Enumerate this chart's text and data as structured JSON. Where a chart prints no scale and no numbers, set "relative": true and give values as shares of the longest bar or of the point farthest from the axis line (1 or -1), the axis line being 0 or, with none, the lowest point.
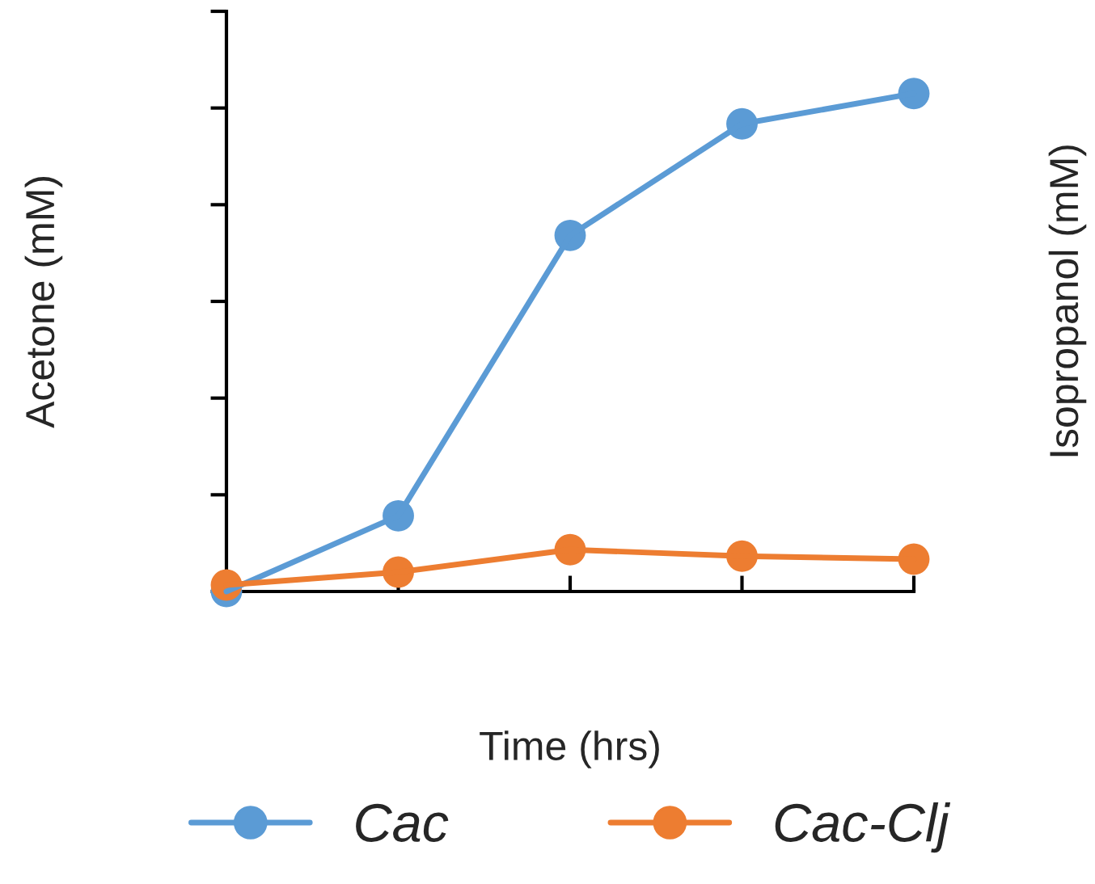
{
  "chart_data": {
    "type": "line",
    "relative": true,
    "xlabel": "Time (hrs)",
    "ylabel": "Acetone (mM)",
    "y2label": "Isopropanol (mM)",
    "categories": [
      null,
      null,
      null,
      null,
      null
    ],
    "series": [
      {
        "name": "Cac",
        "color": "#5b9bd5",
        "values": [
          0,
          0.152,
          0.715,
          0.939,
          1
        ]
      },
      {
        "name": "Cac-Clj",
        "color": "#ed7d31",
        "values": [
          0.013,
          0.039,
          0.084,
          0.071,
          0.065
        ]
      }
    ],
    "marker": "circle",
    "line_style": "solid",
    "legend": "bottom",
    "grid": false,
    "tick_labels": false
  }
}
